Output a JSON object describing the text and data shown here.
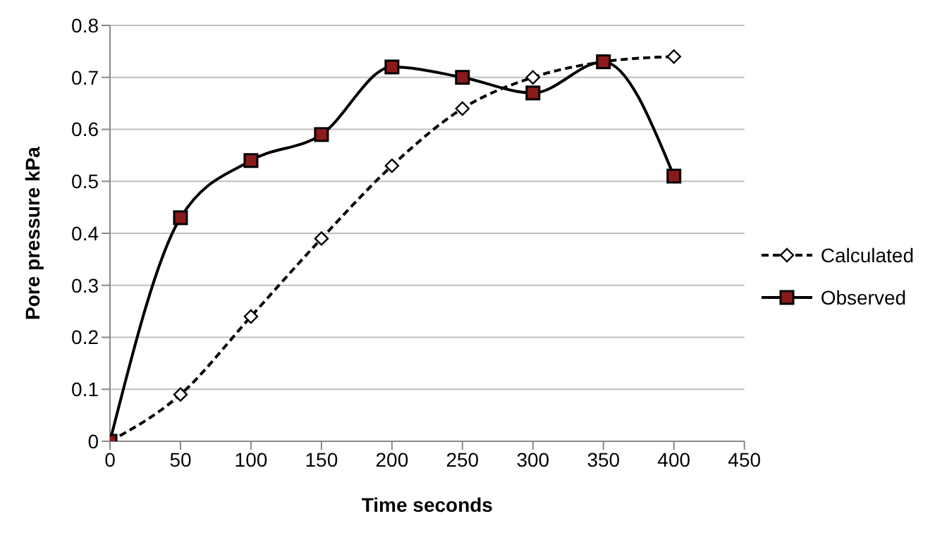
{
  "chart_data": {
    "type": "line",
    "xlabel": "Time seconds",
    "ylabel": "Pore pressure kPa",
    "x": [
      0,
      50,
      100,
      150,
      200,
      250,
      300,
      350,
      400
    ],
    "series": [
      {
        "name": "Calculated",
        "color": "#000000",
        "marker": "diamond",
        "line_style": "dashed",
        "values": [
          0,
          0.09,
          0.24,
          0.39,
          0.53,
          0.64,
          0.7,
          0.73,
          0.74
        ]
      },
      {
        "name": "Observed",
        "color": "#000000",
        "marker": "square",
        "line_style": "solid",
        "values": [
          0,
          0.43,
          0.54,
          0.59,
          0.72,
          0.7,
          0.67,
          0.73,
          0.51
        ]
      }
    ],
    "xlim": [
      0,
      450
    ],
    "xticks": [
      0,
      50,
      100,
      150,
      200,
      250,
      300,
      350,
      400,
      450
    ],
    "ylim": [
      0,
      0.8
    ],
    "yticks": [
      0,
      0.1,
      0.2,
      0.3,
      0.4,
      0.5,
      0.6,
      0.7,
      0.8
    ],
    "grid": "y",
    "legend": "right"
  }
}
